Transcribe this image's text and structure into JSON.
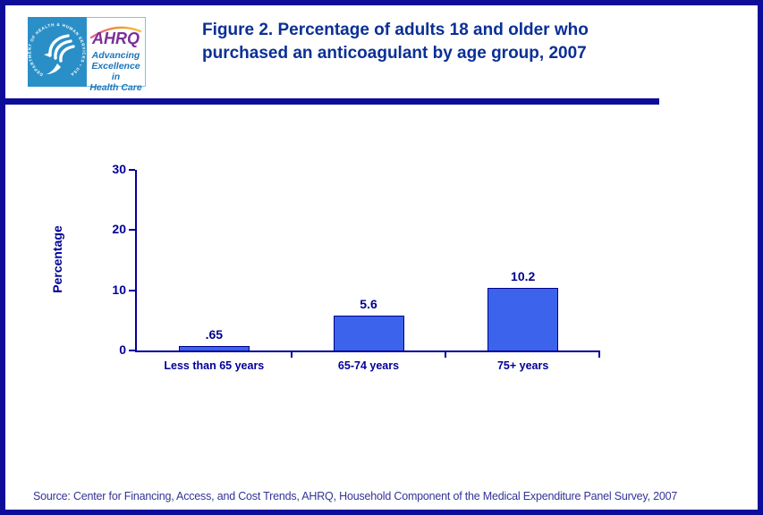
{
  "header": {
    "title_lines": {
      "line1": "Figure 2. Percentage of adults 18 and older who",
      "line2": "purchased an anticoagulant by age group, 2007"
    }
  },
  "logo": {
    "hhs_ring_text": "DEPARTMENT OF HEALTH & HUMAN SERVICES • USA",
    "ahrq_acronym": "AHRQ",
    "tagline_line1": "Advancing",
    "tagline_line2": "Excellence in",
    "tagline_line3": "Health Care"
  },
  "chart_data": {
    "type": "bar",
    "title": "Figure 2. Percentage of adults 18 and older who purchased an anticoagulant by age group, 2007",
    "categories": [
      "Less than 65 years",
      "65-74 years",
      "75+ years"
    ],
    "values": [
      0.65,
      5.6,
      10.2
    ],
    "value_labels": [
      ".65",
      "5.6",
      "10.2"
    ],
    "xlabel": "",
    "ylabel": "Percentage",
    "ylim": [
      0,
      30
    ],
    "yticks": [
      0,
      10,
      20,
      30
    ],
    "grid": false,
    "legend": "none",
    "bar_fill": "#3c63ec",
    "bar_border": "#00008b",
    "axis_color": "#000099"
  },
  "source": {
    "text": "Source: Center for Financing, Access, and Cost Trends, AHRQ, Household Component of the Medical Expenditure Panel Survey, 2007"
  }
}
